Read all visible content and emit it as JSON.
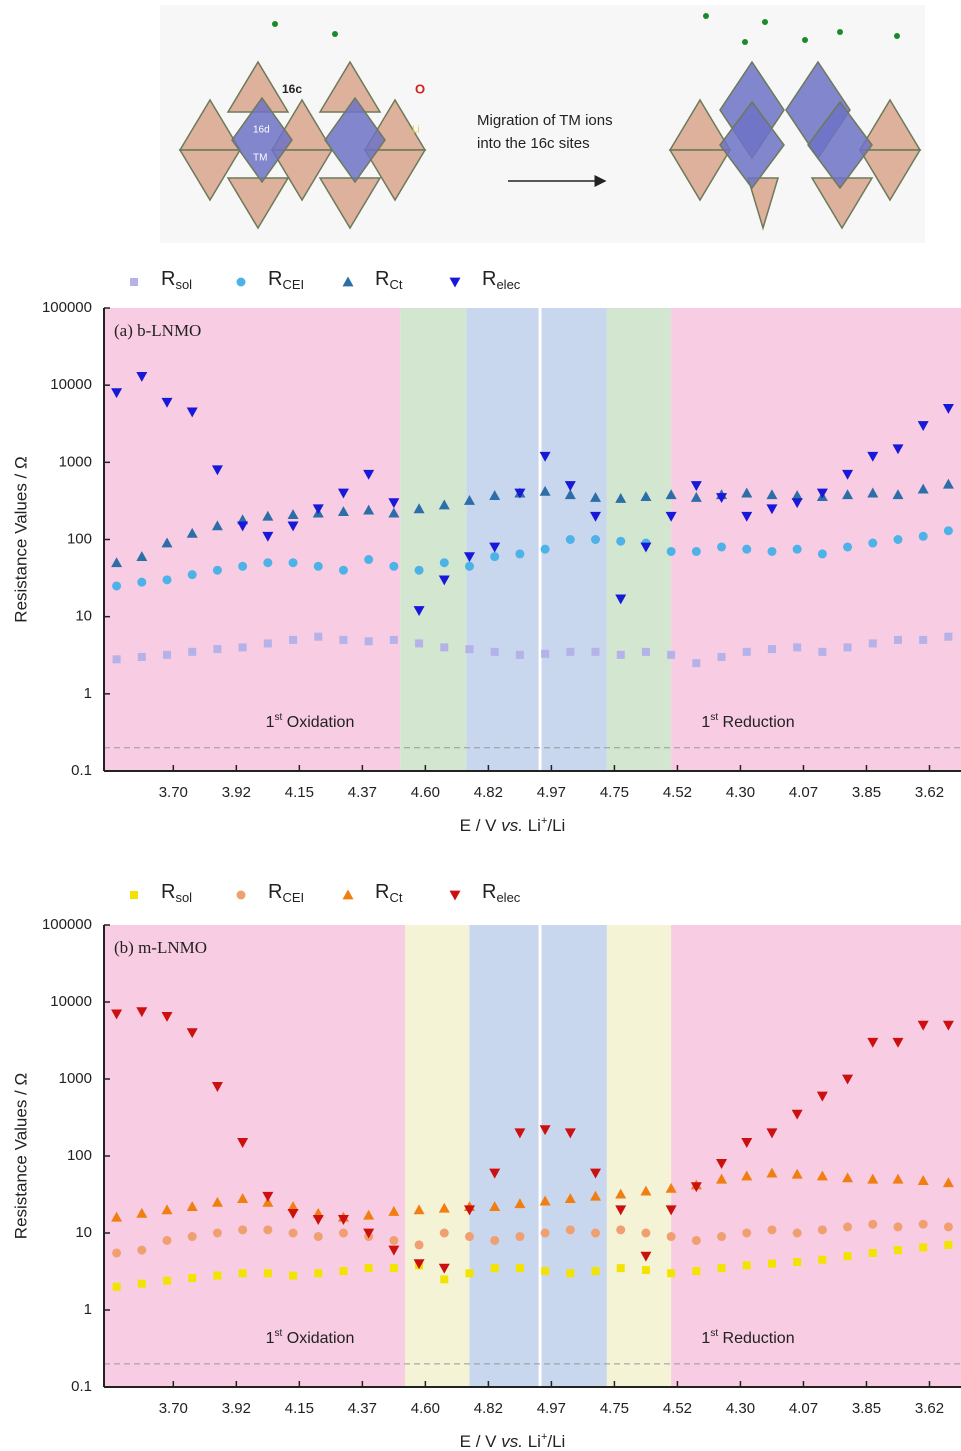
{
  "diagram": {
    "labels": [
      "16c",
      "O",
      "16d",
      "Li",
      "TM"
    ],
    "caption": [
      "Migration of TM ions",
      "into the 16c sites"
    ]
  },
  "chart_data": [
    {
      "type": "scatter",
      "panel_label": "(a) b-LNMO",
      "y_label": "Resistance Values / Ω",
      "x_label": [
        "E / V ",
        "vs.",
        " Li",
        "+",
        "/Li"
      ],
      "y_scale": "log",
      "ylim": [
        0.1,
        100000
      ],
      "yticks": [
        0.1,
        1,
        10,
        100,
        1000,
        10000,
        100000
      ],
      "xlim": [
        0,
        13.6
      ],
      "xticks": [
        {
          "value": 1.1,
          "label": "3.70"
        },
        {
          "value": 2.1,
          "label": "3.92"
        },
        {
          "value": 3.1,
          "label": "4.15"
        },
        {
          "value": 4.1,
          "label": "4.37"
        },
        {
          "value": 5.1,
          "label": "4.60"
        },
        {
          "value": 6.1,
          "label": "4.82"
        },
        {
          "value": 7.1,
          "label": "4.97"
        },
        {
          "value": 8.1,
          "label": "4.75"
        },
        {
          "value": 9.1,
          "label": "4.52"
        },
        {
          "value": 10.1,
          "label": "4.30"
        },
        {
          "value": 11.1,
          "label": "4.07"
        },
        {
          "value": 12.1,
          "label": "3.85"
        },
        {
          "value": 13.1,
          "label": "3.62"
        }
      ],
      "bands": [
        {
          "from": 0,
          "to": 4.7,
          "color": "#f8cce2"
        },
        {
          "from": 4.7,
          "to": 5.75,
          "color": "#d2e6d0"
        },
        {
          "from": 5.75,
          "to": 6.92,
          "color": "#c8d6ee"
        },
        {
          "from": 6.92,
          "to": 7.98,
          "color": "#c8d6ee"
        },
        {
          "from": 7.98,
          "to": 9.0,
          "color": "#d2e6d0"
        },
        {
          "from": 9.0,
          "to": 13.6,
          "color": "#f8cce2"
        }
      ],
      "divider": 6.92,
      "reference_line": 0.2,
      "annotations": [
        [
          "1",
          "st",
          " Oxidation"
        ],
        [
          "1",
          "st",
          " Reduction"
        ]
      ],
      "x": [
        0.2,
        0.6,
        1.0,
        1.4,
        1.8,
        2.2,
        2.6,
        3.0,
        3.4,
        3.8,
        4.2,
        4.6,
        5.0,
        5.4,
        5.8,
        6.2,
        6.6,
        7.0,
        7.4,
        7.8,
        8.2,
        8.6,
        9.0,
        9.4,
        9.8,
        10.2,
        10.6,
        11.0,
        11.4,
        11.8,
        12.2,
        12.6,
        13.0,
        13.4
      ],
      "series": [
        {
          "name": "Rsol",
          "marker": "square",
          "color": "#b4b2e8",
          "values": [
            2.8,
            3,
            3.2,
            3.5,
            3.8,
            4,
            4.5,
            5,
            5.5,
            5,
            4.8,
            5,
            4.5,
            4,
            3.8,
            3.5,
            3.2,
            3.3,
            3.5,
            3.5,
            3.2,
            3.5,
            3.2,
            2.5,
            3,
            3.5,
            3.8,
            4,
            3.5,
            4,
            4.5,
            5,
            5,
            5.5
          ]
        },
        {
          "name": "RCEI",
          "marker": "circle",
          "color": "#4cb2e8",
          "values": [
            25,
            28,
            30,
            35,
            40,
            45,
            50,
            50,
            45,
            40,
            55,
            45,
            40,
            50,
            45,
            60,
            65,
            75,
            100,
            100,
            95,
            90,
            70,
            70,
            80,
            75,
            70,
            75,
            65,
            80,
            90,
            100,
            110,
            130
          ]
        },
        {
          "name": "RCt",
          "marker": "triangle-up",
          "color": "#2c6ea8",
          "values": [
            50,
            60,
            90,
            120,
            150,
            180,
            200,
            210,
            220,
            230,
            240,
            220,
            250,
            280,
            320,
            370,
            400,
            420,
            380,
            350,
            340,
            360,
            380,
            350,
            380,
            400,
            380,
            370,
            360,
            380,
            400,
            380,
            450,
            520
          ]
        },
        {
          "name": "Relec",
          "marker": "triangle-down",
          "color": "#1818d8",
          "values": [
            8000,
            13000,
            6000,
            4500,
            800,
            150,
            110,
            150,
            250,
            400,
            700,
            300,
            12,
            30,
            60,
            80,
            400,
            1200,
            500,
            200,
            17,
            80,
            200,
            500,
            350,
            200,
            250,
            300,
            400,
            700,
            1200,
            1500,
            3000,
            5000
          ]
        }
      ]
    },
    {
      "type": "scatter",
      "panel_label": "(b) m-LNMO",
      "y_label": "Resistance Values / Ω",
      "x_label": [
        "E / V ",
        "vs.",
        " Li",
        "+",
        "/Li"
      ],
      "y_scale": "log",
      "ylim": [
        0.1,
        100000
      ],
      "yticks": [
        0.1,
        1,
        10,
        100,
        1000,
        10000,
        100000
      ],
      "xlim": [
        0,
        13.6
      ],
      "xticks": [
        {
          "value": 1.1,
          "label": "3.70"
        },
        {
          "value": 2.1,
          "label": "3.92"
        },
        {
          "value": 3.1,
          "label": "4.15"
        },
        {
          "value": 4.1,
          "label": "4.37"
        },
        {
          "value": 5.1,
          "label": "4.60"
        },
        {
          "value": 6.1,
          "label": "4.82"
        },
        {
          "value": 7.1,
          "label": "4.97"
        },
        {
          "value": 8.1,
          "label": "4.75"
        },
        {
          "value": 9.1,
          "label": "4.52"
        },
        {
          "value": 10.1,
          "label": "4.30"
        },
        {
          "value": 11.1,
          "label": "4.07"
        },
        {
          "value": 12.1,
          "label": "3.85"
        },
        {
          "value": 13.1,
          "label": "3.62"
        }
      ],
      "bands": [
        {
          "from": 0,
          "to": 4.78,
          "color": "#f8cce2"
        },
        {
          "from": 4.78,
          "to": 5.8,
          "color": "#f4f3d6"
        },
        {
          "from": 5.8,
          "to": 6.92,
          "color": "#c8d6ee"
        },
        {
          "from": 6.92,
          "to": 7.98,
          "color": "#c8d6ee"
        },
        {
          "from": 7.98,
          "to": 9.0,
          "color": "#f4f3d6"
        },
        {
          "from": 9.0,
          "to": 13.6,
          "color": "#f8cce2"
        }
      ],
      "divider": 6.92,
      "reference_line": 0.2,
      "annotations": [
        [
          "1",
          "st",
          " Oxidation"
        ],
        [
          "1",
          "st",
          " Reduction"
        ]
      ],
      "x": [
        0.2,
        0.6,
        1.0,
        1.4,
        1.8,
        2.2,
        2.6,
        3.0,
        3.4,
        3.8,
        4.2,
        4.6,
        5.0,
        5.4,
        5.8,
        6.2,
        6.6,
        7.0,
        7.4,
        7.8,
        8.2,
        8.6,
        9.0,
        9.4,
        9.8,
        10.2,
        10.6,
        11.0,
        11.4,
        11.8,
        12.2,
        12.6,
        13.0,
        13.4
      ],
      "series": [
        {
          "name": "Rsol",
          "marker": "square",
          "color": "#f2e400",
          "values": [
            2,
            2.2,
            2.4,
            2.6,
            2.8,
            3,
            3,
            2.8,
            3,
            3.2,
            3.5,
            3.5,
            3.8,
            2.5,
            3,
            3.5,
            3.5,
            3.2,
            3,
            3.2,
            3.5,
            3.3,
            3,
            3.2,
            3.5,
            3.8,
            4,
            4.2,
            4.5,
            5,
            5.5,
            6,
            6.5,
            7
          ]
        },
        {
          "name": "RCEI",
          "marker": "circle",
          "color": "#f0a070",
          "values": [
            5.5,
            6,
            8,
            9,
            10,
            11,
            11,
            10,
            9,
            10,
            9,
            8,
            7,
            10,
            9,
            8,
            9,
            10,
            11,
            10,
            11,
            10,
            9,
            8,
            9,
            10,
            11,
            10,
            11,
            12,
            13,
            12,
            13,
            12
          ]
        },
        {
          "name": "RCt",
          "marker": "triangle-up",
          "color": "#f07e10",
          "values": [
            16,
            18,
            20,
            22,
            25,
            28,
            25,
            22,
            18,
            16,
            17,
            19,
            20,
            21,
            22,
            22,
            24,
            26,
            28,
            30,
            32,
            35,
            38,
            42,
            50,
            55,
            60,
            58,
            55,
            52,
            50,
            50,
            48,
            45
          ]
        },
        {
          "name": "Relec",
          "marker": "triangle-down",
          "color": "#cc1010",
          "values": [
            7000,
            7500,
            6500,
            4000,
            800,
            150,
            30,
            18,
            15,
            15,
            10,
            6,
            4,
            3.5,
            20,
            60,
            200,
            220,
            200,
            60,
            20,
            5,
            20,
            40,
            80,
            150,
            200,
            350,
            600,
            1000,
            3000,
            3000,
            5000,
            5000
          ]
        }
      ]
    }
  ]
}
